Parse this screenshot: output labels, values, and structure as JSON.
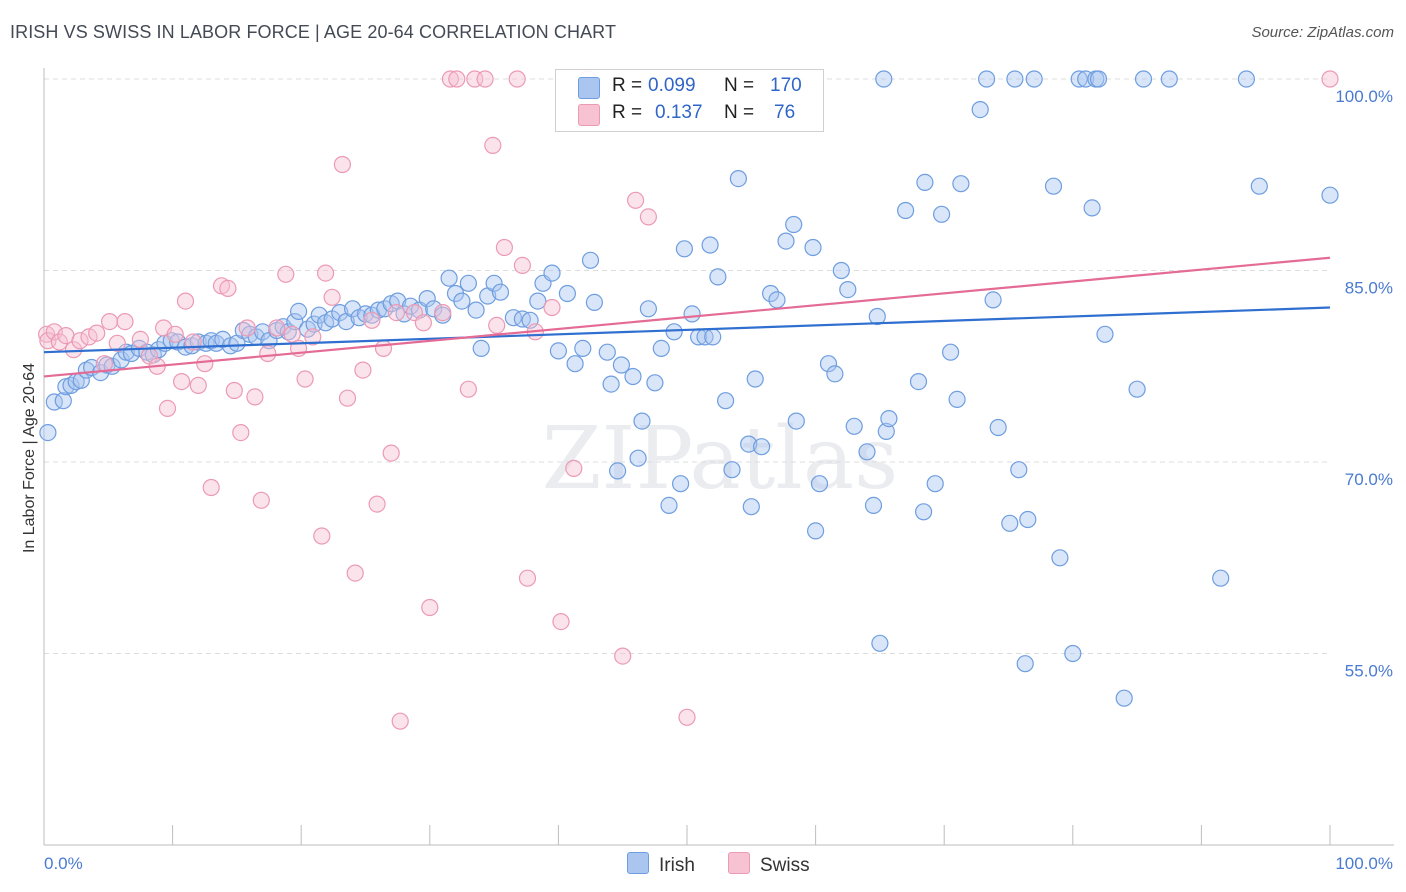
{
  "title": "IRISH VS SWISS IN LABOR FORCE | AGE 20-64 CORRELATION CHART",
  "source": "Source: ZipAtlas.com",
  "watermark": "ZIPatlas",
  "legend": {
    "irish": {
      "r_label": "R =",
      "r_value": "0.099",
      "n_label": "N =",
      "n_value": "170"
    },
    "swiss": {
      "r_label": "R =",
      "r_value": "0.137",
      "n_label": "N =",
      "n_value": "76"
    }
  },
  "colors": {
    "irish_fill": "#aac6f0",
    "irish_stroke": "#6e9ee0",
    "irish_line": "#2f6fd0",
    "swiss_fill": "#f7c2d2",
    "swiss_stroke": "#ec9ab4",
    "swiss_line": "#e46b96",
    "tick_text": "#4a7bd0"
  },
  "chart_data": {
    "type": "scatter",
    "title": "IRISH VS SWISS IN LABOR FORCE | AGE 20-64 CORRELATION CHART",
    "xlabel": "",
    "ylabel": "In Labor Force | Age 20-64",
    "xlim": [
      0,
      100
    ],
    "ylim": [
      40,
      102
    ],
    "x_tick_labels": [
      "0.0%",
      "100.0%"
    ],
    "y_ticks": [
      55,
      70,
      85,
      100
    ],
    "y_tick_labels": [
      "55.0%",
      "70.0%",
      "85.0%",
      "100.0%"
    ],
    "grid": true,
    "legend_position": "top-center",
    "series": [
      {
        "name": "Irish",
        "r": 0.099,
        "n": 170,
        "trend": {
          "x": [
            0,
            100
          ],
          "y": [
            78.6,
            82.1
          ]
        },
        "points": [
          [
            0.3,
            72.3
          ],
          [
            0.8,
            74.7
          ],
          [
            1.5,
            74.8
          ],
          [
            1.7,
            75.9
          ],
          [
            2.1,
            76.0
          ],
          [
            2.5,
            76.3
          ],
          [
            2.9,
            76.4
          ],
          [
            3.3,
            77.2
          ],
          [
            3.7,
            77.4
          ],
          [
            4.4,
            77.0
          ],
          [
            4.9,
            77.6
          ],
          [
            5.3,
            77.5
          ],
          [
            6.0,
            78.0
          ],
          [
            6.4,
            78.6
          ],
          [
            6.8,
            78.5
          ],
          [
            7.4,
            78.9
          ],
          [
            8.0,
            78.6
          ],
          [
            8.5,
            78.4
          ],
          [
            8.9,
            78.8
          ],
          [
            9.4,
            79.3
          ],
          [
            9.9,
            79.5
          ],
          [
            10.4,
            79.4
          ],
          [
            11.0,
            79.0
          ],
          [
            11.5,
            79.1
          ],
          [
            12.0,
            79.4
          ],
          [
            12.6,
            79.3
          ],
          [
            13.0,
            79.5
          ],
          [
            13.4,
            79.3
          ],
          [
            13.9,
            79.6
          ],
          [
            14.5,
            79.1
          ],
          [
            15.0,
            79.3
          ],
          [
            15.5,
            80.3
          ],
          [
            16.0,
            80.0
          ],
          [
            16.5,
            79.8
          ],
          [
            17.0,
            80.2
          ],
          [
            17.5,
            79.5
          ],
          [
            18.1,
            80.3
          ],
          [
            18.6,
            80.6
          ],
          [
            19.0,
            80.2
          ],
          [
            19.5,
            81.0
          ],
          [
            19.8,
            81.8
          ],
          [
            20.5,
            80.4
          ],
          [
            21.0,
            80.8
          ],
          [
            21.4,
            81.5
          ],
          [
            21.9,
            80.9
          ],
          [
            22.4,
            81.2
          ],
          [
            23.0,
            81.7
          ],
          [
            23.5,
            81.0
          ],
          [
            24.0,
            82.0
          ],
          [
            24.5,
            81.3
          ],
          [
            25.0,
            81.6
          ],
          [
            25.5,
            81.5
          ],
          [
            26.0,
            81.9
          ],
          [
            26.5,
            82.0
          ],
          [
            27.0,
            82.4
          ],
          [
            27.5,
            82.6
          ],
          [
            28.0,
            81.6
          ],
          [
            28.5,
            82.2
          ],
          [
            29.2,
            81.9
          ],
          [
            29.8,
            82.8
          ],
          [
            30.3,
            82.0
          ],
          [
            31.0,
            81.5
          ],
          [
            31.5,
            84.4
          ],
          [
            32.0,
            83.2
          ],
          [
            32.5,
            82.6
          ],
          [
            33.0,
            84.0
          ],
          [
            33.6,
            81.9
          ],
          [
            34.0,
            78.9
          ],
          [
            34.5,
            83.0
          ],
          [
            35.0,
            84.0
          ],
          [
            35.5,
            83.3
          ],
          [
            36.5,
            81.3
          ],
          [
            37.2,
            81.2
          ],
          [
            37.8,
            81.1
          ],
          [
            38.4,
            82.6
          ],
          [
            38.8,
            84.0
          ],
          [
            39.5,
            84.8
          ],
          [
            40.0,
            78.7
          ],
          [
            40.7,
            83.2
          ],
          [
            41.3,
            77.7
          ],
          [
            41.9,
            78.9
          ],
          [
            42.5,
            85.8
          ],
          [
            42.8,
            82.5
          ],
          [
            43.8,
            78.6
          ],
          [
            44.1,
            76.1
          ],
          [
            44.9,
            77.6
          ],
          [
            44.6,
            69.3
          ],
          [
            45.8,
            76.7
          ],
          [
            46.2,
            70.3
          ],
          [
            46.5,
            73.2
          ],
          [
            47.0,
            82.0
          ],
          [
            47.5,
            76.2
          ],
          [
            48.0,
            78.9
          ],
          [
            48.6,
            66.6
          ],
          [
            49.0,
            80.2
          ],
          [
            49.5,
            68.3
          ],
          [
            49.8,
            86.7
          ],
          [
            50.4,
            81.6
          ],
          [
            50.9,
            79.8
          ],
          [
            51.4,
            79.8
          ],
          [
            51.8,
            87.0
          ],
          [
            52.0,
            79.8
          ],
          [
            52.4,
            84.5
          ],
          [
            53.0,
            74.8
          ],
          [
            53.5,
            69.4
          ],
          [
            54.0,
            92.2
          ],
          [
            54.8,
            71.4
          ],
          [
            55.0,
            66.5
          ],
          [
            55.3,
            76.5
          ],
          [
            55.8,
            71.2
          ],
          [
            56.5,
            83.2
          ],
          [
            57.0,
            82.7
          ],
          [
            57.7,
            87.3
          ],
          [
            58.5,
            73.2
          ],
          [
            58.3,
            88.6
          ],
          [
            59.8,
            86.8
          ],
          [
            60.0,
            64.6
          ],
          [
            60.3,
            68.3
          ],
          [
            61.0,
            77.7
          ],
          [
            61.5,
            76.9
          ],
          [
            62.0,
            85.0
          ],
          [
            62.5,
            83.5
          ],
          [
            63.0,
            72.8
          ],
          [
            64.0,
            70.8
          ],
          [
            64.5,
            66.6
          ],
          [
            64.8,
            81.4
          ],
          [
            65.3,
            100.0
          ],
          [
            65.5,
            72.4
          ],
          [
            65.7,
            73.4
          ],
          [
            65.0,
            55.8
          ],
          [
            67.0,
            89.7
          ],
          [
            68.0,
            76.3
          ],
          [
            68.4,
            66.1
          ],
          [
            68.5,
            91.9
          ],
          [
            69.3,
            68.3
          ],
          [
            69.8,
            89.4
          ],
          [
            70.5,
            78.6
          ],
          [
            71.0,
            74.9
          ],
          [
            71.3,
            91.8
          ],
          [
            72.8,
            97.6
          ],
          [
            73.3,
            100.0
          ],
          [
            73.8,
            82.7
          ],
          [
            74.2,
            72.7
          ],
          [
            75.1,
            65.2
          ],
          [
            75.5,
            100.0
          ],
          [
            75.8,
            69.4
          ],
          [
            76.3,
            54.2
          ],
          [
            76.5,
            65.5
          ],
          [
            77.0,
            100.0
          ],
          [
            78.5,
            91.6
          ],
          [
            79.0,
            62.5
          ],
          [
            80.0,
            55.0
          ],
          [
            80.5,
            100.0
          ],
          [
            81.0,
            100.0
          ],
          [
            81.5,
            89.9
          ],
          [
            81.8,
            100.0
          ],
          [
            82.0,
            100.0
          ],
          [
            82.5,
            80.0
          ],
          [
            84.0,
            51.5
          ],
          [
            85.0,
            75.7
          ],
          [
            85.5,
            100.0
          ],
          [
            87.5,
            100.0
          ],
          [
            91.5,
            60.9
          ],
          [
            93.5,
            100.0
          ],
          [
            94.5,
            91.6
          ],
          [
            100.0,
            90.9
          ]
        ]
      },
      {
        "name": "Swiss",
        "r": 0.137,
        "n": 76,
        "trend": {
          "x": [
            0,
            100
          ],
          "y": [
            76.7,
            86.0
          ]
        },
        "points": [
          [
            0.2,
            80.0
          ],
          [
            0.3,
            79.5
          ],
          [
            0.8,
            80.2
          ],
          [
            1.2,
            79.4
          ],
          [
            1.7,
            79.9
          ],
          [
            2.3,
            78.8
          ],
          [
            2.8,
            79.5
          ],
          [
            3.5,
            79.8
          ],
          [
            4.1,
            80.1
          ],
          [
            4.7,
            77.7
          ],
          [
            5.1,
            81.0
          ],
          [
            5.7,
            79.3
          ],
          [
            6.3,
            81.0
          ],
          [
            7.5,
            79.6
          ],
          [
            8.2,
            78.3
          ],
          [
            8.8,
            77.5
          ],
          [
            9.3,
            80.5
          ],
          [
            9.6,
            74.2
          ],
          [
            10.2,
            80.0
          ],
          [
            10.7,
            76.3
          ],
          [
            11.0,
            82.6
          ],
          [
            11.6,
            79.4
          ],
          [
            12.0,
            76.0
          ],
          [
            12.5,
            77.7
          ],
          [
            13.0,
            68.0
          ],
          [
            13.8,
            83.8
          ],
          [
            14.3,
            83.6
          ],
          [
            14.8,
            75.6
          ],
          [
            15.3,
            72.3
          ],
          [
            15.8,
            80.5
          ],
          [
            16.4,
            75.1
          ],
          [
            16.9,
            67.0
          ],
          [
            17.4,
            78.5
          ],
          [
            18.1,
            80.5
          ],
          [
            18.8,
            84.7
          ],
          [
            19.3,
            80.0
          ],
          [
            19.8,
            78.9
          ],
          [
            20.3,
            76.5
          ],
          [
            20.9,
            79.8
          ],
          [
            21.6,
            64.2
          ],
          [
            21.9,
            84.8
          ],
          [
            22.4,
            82.9
          ],
          [
            23.2,
            93.3
          ],
          [
            23.6,
            75.0
          ],
          [
            24.2,
            61.3
          ],
          [
            24.8,
            77.2
          ],
          [
            25.5,
            81.1
          ],
          [
            25.9,
            66.7
          ],
          [
            26.4,
            78.9
          ],
          [
            27.0,
            70.7
          ],
          [
            27.4,
            81.7
          ],
          [
            27.7,
            49.7
          ],
          [
            28.8,
            81.7
          ],
          [
            29.5,
            80.9
          ],
          [
            30.0,
            58.6
          ],
          [
            31.0,
            81.7
          ],
          [
            31.6,
            100.0
          ],
          [
            32.1,
            100.0
          ],
          [
            33.0,
            75.7
          ],
          [
            33.5,
            100.0
          ],
          [
            34.3,
            100.0
          ],
          [
            34.9,
            94.8
          ],
          [
            35.2,
            80.7
          ],
          [
            35.8,
            86.8
          ],
          [
            36.8,
            100.0
          ],
          [
            37.2,
            85.4
          ],
          [
            37.6,
            60.9
          ],
          [
            38.2,
            80.2
          ],
          [
            39.5,
            82.1
          ],
          [
            40.2,
            57.5
          ],
          [
            41.2,
            69.5
          ],
          [
            42.3,
            100.0
          ],
          [
            45.0,
            54.8
          ],
          [
            46.0,
            90.5
          ],
          [
            47.0,
            89.2
          ],
          [
            50.0,
            50.0
          ],
          [
            100.0,
            100.0
          ]
        ]
      }
    ]
  }
}
